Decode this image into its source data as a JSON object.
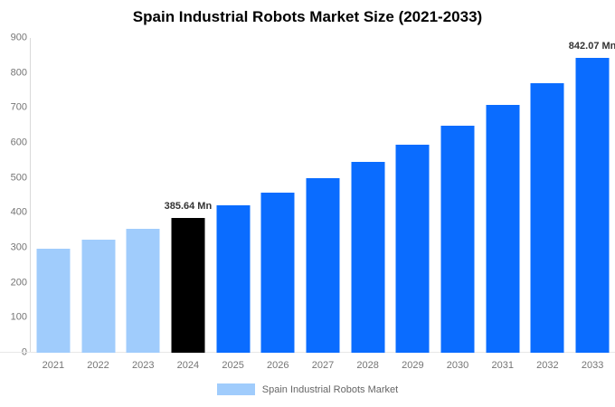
{
  "title": "Spain Industrial Robots Market Size (2021-2033)",
  "chart_data": {
    "type": "bar",
    "title": "Spain Industrial Robots Market Size (2021-2033)",
    "categories": [
      "2021",
      "2022",
      "2023",
      "2024",
      "2025",
      "2026",
      "2027",
      "2028",
      "2029",
      "2030",
      "2031",
      "2032",
      "2033"
    ],
    "values": [
      297,
      324,
      354,
      385.64,
      421,
      459,
      500,
      546,
      595,
      649,
      708,
      772,
      842.07
    ],
    "unit": "Mn",
    "ylim": [
      0,
      900
    ],
    "yticks": [
      0,
      100,
      200,
      300,
      400,
      500,
      600,
      700,
      800,
      900
    ],
    "grid": false,
    "legend_position": "bottom-center",
    "bar_colors": [
      "#a0ccfc",
      "#a0ccfc",
      "#a0ccfc",
      "#000000",
      "#0a6cff",
      "#0a6cff",
      "#0a6cff",
      "#0a6cff",
      "#0a6cff",
      "#0a6cff",
      "#0a6cff",
      "#0a6cff",
      "#0a6cff"
    ],
    "annotations": [
      {
        "category": "2024",
        "text": "385.64 Mn"
      },
      {
        "category": "2033",
        "text": "842.07 Mn"
      }
    ],
    "legend": [
      {
        "label": "Spain Industrial Robots Market",
        "color": "#a0ccfc"
      }
    ]
  },
  "colors": {
    "historical_bar": "#a0ccfc",
    "highlight_bar": "#000000",
    "forecast_bar": "#0a6cff",
    "axis_label": "#757575",
    "value_label": "#333333",
    "legend_text": "#666666",
    "axis_line": "#d9d9d9"
  }
}
